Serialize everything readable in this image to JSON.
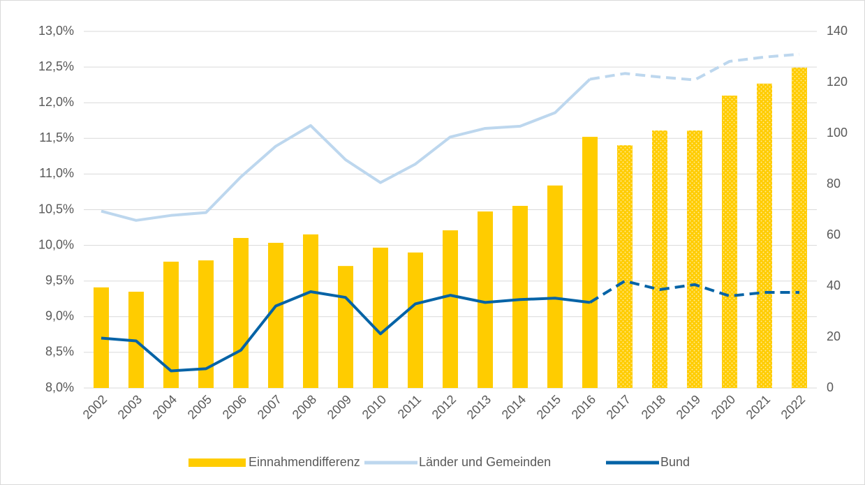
{
  "chart_data": {
    "type": "bar-line",
    "categories": [
      "2002",
      "2003",
      "2004",
      "2005",
      "2006",
      "2007",
      "2008",
      "2009",
      "2010",
      "2011",
      "2012",
      "2013",
      "2014",
      "2015",
      "2016",
      "2017",
      "2018",
      "2019",
      "2020",
      "2021",
      "2022"
    ],
    "series": [
      {
        "name": "Einnahmendifferenz",
        "type": "bar",
        "axis": "y2",
        "color": "#ffcc00",
        "pattern_from": "2017",
        "values": [
          39.5,
          37.8,
          49.6,
          50.1,
          58.9,
          57.0,
          60.3,
          47.9,
          55.1,
          53.2,
          61.9,
          69.3,
          71.5,
          79.5,
          98.6,
          95.3,
          101.1,
          101.1,
          114.8,
          119.5,
          125.8
        ]
      },
      {
        "name": "Länder und Gemeinden",
        "type": "line",
        "axis": "y",
        "color": "#bdd7ee",
        "dash_from": "2016",
        "values": [
          10.48,
          10.35,
          10.42,
          10.46,
          10.96,
          11.39,
          11.68,
          11.2,
          10.88,
          11.14,
          11.52,
          11.64,
          11.67,
          11.86,
          12.33,
          12.41,
          12.36,
          12.32,
          12.58,
          12.64,
          12.68
        ]
      },
      {
        "name": "Bund",
        "type": "line",
        "axis": "y",
        "color": "#0563a6",
        "dash_from": "2016",
        "values": [
          8.7,
          8.66,
          8.24,
          8.27,
          8.53,
          9.15,
          9.35,
          9.27,
          8.76,
          9.18,
          9.3,
          9.2,
          9.24,
          9.26,
          9.2,
          9.5,
          9.38,
          9.45,
          9.29,
          9.34,
          9.34
        ]
      }
    ],
    "ylim": [
      8.0,
      13.0
    ],
    "yticks": [
      {
        "value": 8.0,
        "label": "8,0%"
      },
      {
        "value": 8.5,
        "label": "8,5%"
      },
      {
        "value": 9.0,
        "label": "9,0%"
      },
      {
        "value": 9.5,
        "label": "9,5%"
      },
      {
        "value": 10.0,
        "label": "10,0%"
      },
      {
        "value": 10.5,
        "label": "10,5%"
      },
      {
        "value": 11.0,
        "label": "11,0%"
      },
      {
        "value": 11.5,
        "label": "11,5%"
      },
      {
        "value": 12.0,
        "label": "12,0%"
      },
      {
        "value": 12.5,
        "label": "12,5%"
      },
      {
        "value": 13.0,
        "label": "13,0%"
      }
    ],
    "y2lim": [
      0,
      140
    ],
    "y2ticks": [
      0,
      20,
      40,
      60,
      80,
      100,
      120,
      140
    ],
    "grid": true,
    "legend": "bottom"
  }
}
